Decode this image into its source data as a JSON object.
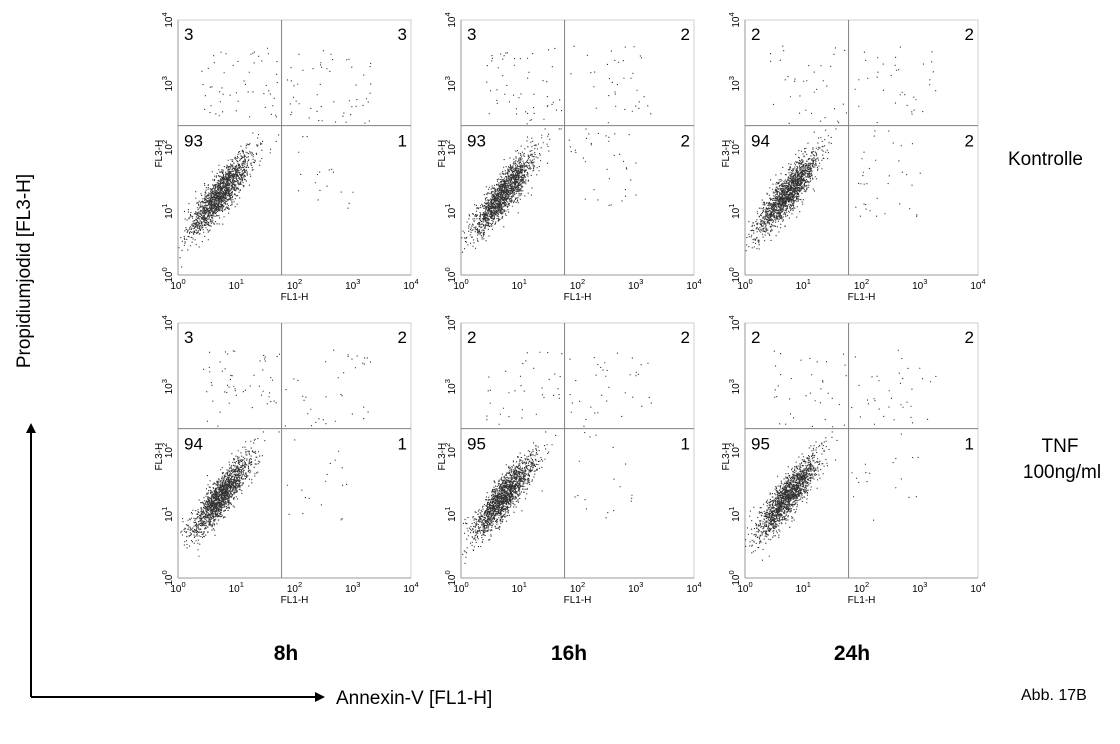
{
  "figure": {
    "x_axis_label": "Annexin-V [FL1-H]",
    "y_axis_label": "Propidiumjodid [FL3-H]",
    "figure_label": "Abb. 17B",
    "row_labels": [
      [
        "Kontrolle"
      ],
      [
        "TNF",
        "100ng/ml"
      ]
    ],
    "column_labels": [
      "8h",
      "16h",
      "24h"
    ],
    "colors": {
      "dots": "#000000",
      "gate_lines": "#808080",
      "axes": "#999999"
    }
  },
  "chart_data": [
    {
      "type": "scatter",
      "row": "Kontrolle",
      "column": "8h",
      "xlabel": "FL1-H",
      "ylabel": "FL3-H",
      "xscale": "log",
      "yscale": "log",
      "xlim": [
        1,
        10000
      ],
      "ylim": [
        1,
        10000
      ],
      "xticks": [
        "10^0",
        "10^1",
        "10^2",
        "10^3",
        "10^4"
      ],
      "yticks": [
        "10^0",
        "10^1",
        "10^2",
        "10^3",
        "10^4"
      ],
      "quadrant_gate": {
        "x": 60,
        "y": 220
      },
      "quadrants_percent": {
        "upper_left": 3,
        "upper_right": 3,
        "lower_left": 93,
        "lower_right": 1
      }
    },
    {
      "type": "scatter",
      "row": "Kontrolle",
      "column": "16h",
      "xlabel": "FL1-H",
      "ylabel": "FL3-H",
      "xscale": "log",
      "yscale": "log",
      "xlim": [
        1,
        10000
      ],
      "ylim": [
        1,
        10000
      ],
      "xticks": [
        "10^0",
        "10^1",
        "10^2",
        "10^3",
        "10^4"
      ],
      "yticks": [
        "10^0",
        "10^1",
        "10^2",
        "10^3",
        "10^4"
      ],
      "quadrant_gate": {
        "x": 60,
        "y": 220
      },
      "quadrants_percent": {
        "upper_left": 3,
        "upper_right": 2,
        "lower_left": 93,
        "lower_right": 2
      }
    },
    {
      "type": "scatter",
      "row": "Kontrolle",
      "column": "24h",
      "xlabel": "FL1-H",
      "ylabel": "FL3-H",
      "xscale": "log",
      "yscale": "log",
      "xlim": [
        1,
        10000
      ],
      "ylim": [
        1,
        10000
      ],
      "xticks": [
        "10^0",
        "10^1",
        "10^2",
        "10^3",
        "10^4"
      ],
      "yticks": [
        "10^0",
        "10^1",
        "10^2",
        "10^3",
        "10^4"
      ],
      "quadrant_gate": {
        "x": 60,
        "y": 220
      },
      "quadrants_percent": {
        "upper_left": 2,
        "upper_right": 2,
        "lower_left": 94,
        "lower_right": 2
      }
    },
    {
      "type": "scatter",
      "row": "TNF 100ng/ml",
      "column": "8h",
      "xlabel": "FL1-H",
      "ylabel": "FL3-H",
      "xscale": "log",
      "yscale": "log",
      "xlim": [
        1,
        10000
      ],
      "ylim": [
        1,
        10000
      ],
      "xticks": [
        "10^0",
        "10^1",
        "10^2",
        "10^3",
        "10^4"
      ],
      "yticks": [
        "10^0",
        "10^1",
        "10^2",
        "10^3",
        "10^4"
      ],
      "quadrant_gate": {
        "x": 60,
        "y": 220
      },
      "quadrants_percent": {
        "upper_left": 3,
        "upper_right": 2,
        "lower_left": 94,
        "lower_right": 1
      }
    },
    {
      "type": "scatter",
      "row": "TNF 100ng/ml",
      "column": "16h",
      "xlabel": "FL1-H",
      "ylabel": "FL3-H",
      "xscale": "log",
      "yscale": "log",
      "xlim": [
        1,
        10000
      ],
      "ylim": [
        1,
        10000
      ],
      "xticks": [
        "10^0",
        "10^1",
        "10^2",
        "10^3",
        "10^4"
      ],
      "yticks": [
        "10^0",
        "10^1",
        "10^2",
        "10^3",
        "10^4"
      ],
      "quadrant_gate": {
        "x": 60,
        "y": 220
      },
      "quadrants_percent": {
        "upper_left": 2,
        "upper_right": 2,
        "lower_left": 95,
        "lower_right": 1
      }
    },
    {
      "type": "scatter",
      "row": "TNF 100ng/ml",
      "column": "24h",
      "xlabel": "FL1-H",
      "ylabel": "FL3-H",
      "xscale": "log",
      "yscale": "log",
      "xlim": [
        1,
        10000
      ],
      "ylim": [
        1,
        10000
      ],
      "xticks": [
        "10^0",
        "10^1",
        "10^2",
        "10^3",
        "10^4"
      ],
      "yticks": [
        "10^0",
        "10^1",
        "10^2",
        "10^3",
        "10^4"
      ],
      "quadrant_gate": {
        "x": 60,
        "y": 220
      },
      "quadrants_percent": {
        "upper_left": 2,
        "upper_right": 2,
        "lower_left": 95,
        "lower_right": 1
      }
    }
  ]
}
